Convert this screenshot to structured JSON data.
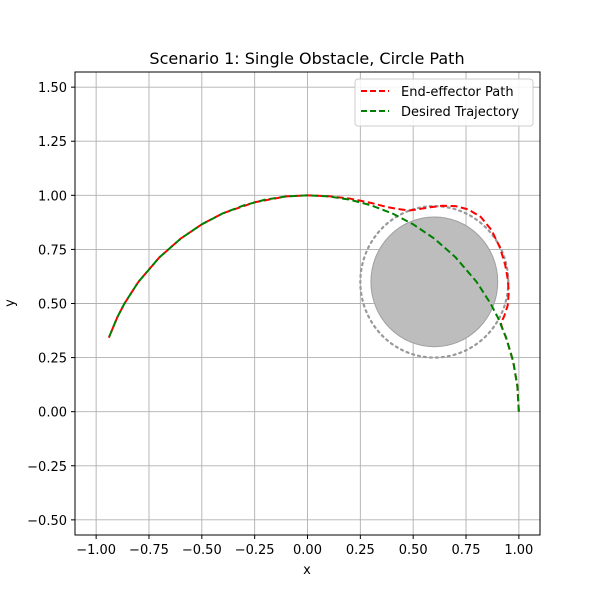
{
  "chart_data": {
    "type": "line",
    "title": "Scenario 1: Single Obstacle, Circle Path",
    "xlabel": "x",
    "ylabel": "y",
    "xlim": [
      -1.1,
      1.1
    ],
    "ylim": [
      -0.57,
      1.57
    ],
    "grid": true,
    "legend_position": "top-right",
    "x_ticks": [
      -1.0,
      -0.75,
      -0.5,
      -0.25,
      0.0,
      0.25,
      0.5,
      0.75,
      1.0
    ],
    "y_ticks": [
      -0.5,
      -0.25,
      0.0,
      0.25,
      0.5,
      0.75,
      1.0,
      1.25,
      1.5
    ],
    "x_tick_labels": [
      "−1.00",
      "−0.75",
      "−0.50",
      "−0.25",
      "0.00",
      "0.25",
      "0.50",
      "0.75",
      "1.00"
    ],
    "y_tick_labels": [
      "−0.50",
      "−0.25",
      "0.00",
      "0.25",
      "0.50",
      "0.75",
      "1.00",
      "1.25",
      "1.50"
    ],
    "obstacle": {
      "center": [
        0.6,
        0.6
      ],
      "radius": 0.3,
      "safety_radius": 0.35,
      "fill_color": "#bdbdbd",
      "safety_color": "#999999"
    },
    "series": [
      {
        "name": "End-effector Path",
        "color": "#ff0000",
        "points": [
          [
            1.0,
            0.0
          ],
          [
            0.993,
            0.118
          ],
          [
            0.973,
            0.233
          ],
          [
            0.94,
            0.34
          ],
          [
            0.92,
            0.39
          ],
          [
            0.915,
            0.41
          ],
          [
            0.93,
            0.44
          ],
          [
            0.947,
            0.49
          ],
          [
            0.952,
            0.55
          ],
          [
            0.948,
            0.61
          ],
          [
            0.935,
            0.68
          ],
          [
            0.91,
            0.76
          ],
          [
            0.87,
            0.84
          ],
          [
            0.82,
            0.9
          ],
          [
            0.76,
            0.935
          ],
          [
            0.7,
            0.95
          ],
          [
            0.64,
            0.952
          ],
          [
            0.58,
            0.945
          ],
          [
            0.52,
            0.935
          ],
          [
            0.48,
            0.93
          ],
          [
            0.44,
            0.935
          ],
          [
            0.38,
            0.945
          ],
          [
            0.3,
            0.965
          ],
          [
            0.2,
            0.985
          ],
          [
            0.1,
            0.996
          ],
          [
            0.0,
            1.0
          ],
          [
            -0.1,
            0.995
          ],
          [
            -0.25,
            0.968
          ],
          [
            -0.4,
            0.917
          ],
          [
            -0.5,
            0.866
          ],
          [
            -0.6,
            0.8
          ],
          [
            -0.7,
            0.714
          ],
          [
            -0.8,
            0.6
          ],
          [
            -0.866,
            0.5
          ],
          [
            -0.9,
            0.436
          ],
          [
            -0.94,
            0.342
          ]
        ]
      },
      {
        "name": "Desired Trajectory",
        "color": "#008000",
        "points": [
          [
            1.0,
            0.0
          ],
          [
            0.993,
            0.118
          ],
          [
            0.973,
            0.233
          ],
          [
            0.94,
            0.342
          ],
          [
            0.9,
            0.436
          ],
          [
            0.866,
            0.5
          ],
          [
            0.8,
            0.6
          ],
          [
            0.7,
            0.714
          ],
          [
            0.6,
            0.8
          ],
          [
            0.5,
            0.866
          ],
          [
            0.4,
            0.917
          ],
          [
            0.3,
            0.954
          ],
          [
            0.2,
            0.98
          ],
          [
            0.1,
            0.995
          ],
          [
            0.0,
            1.0
          ],
          [
            -0.1,
            0.995
          ],
          [
            -0.2,
            0.98
          ],
          [
            -0.3,
            0.954
          ],
          [
            -0.4,
            0.917
          ],
          [
            -0.5,
            0.866
          ],
          [
            -0.6,
            0.8
          ],
          [
            -0.7,
            0.714
          ],
          [
            -0.8,
            0.6
          ],
          [
            -0.866,
            0.5
          ],
          [
            -0.9,
            0.436
          ],
          [
            -0.94,
            0.342
          ]
        ]
      }
    ]
  }
}
